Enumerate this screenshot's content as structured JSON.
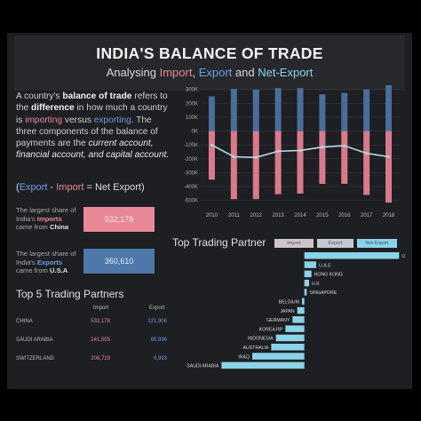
{
  "header": {
    "title": "INDIA'S BALANCE OF TRADE",
    "subtitle_prefix": "Analysing",
    "subtitle_import": "Import",
    "subtitle_sep1": ",",
    "subtitle_export": "Export",
    "subtitle_and": "and",
    "subtitle_net": "Net-Export"
  },
  "intro": {
    "p1": "A country's ",
    "p2": "balance of trade",
    "p3": " refers to the ",
    "p4": "difference",
    "p5": " in how much a country is ",
    "p6": "importing",
    "p7": " versus ",
    "p8": "exporting",
    "p9": ". The three components of the balance of payments are the ",
    "p10": "current account, financial account, and capital account."
  },
  "formula": {
    "open": "(",
    "export": "Export",
    "minus": " - ",
    "import": "Import",
    "rest": " = Net Export)"
  },
  "import_share": {
    "l1": "The largest share of",
    "l2a": "India's ",
    "l2b": "Imports",
    "l3a": "came from ",
    "l3b": "China",
    "value": "532,178",
    "color": "#e88795"
  },
  "export_share": {
    "l1": "The largest share of",
    "l2a": "India's ",
    "l2b": "Exports",
    "l3a": "came from ",
    "l3b": "U.S.A",
    "value": "360,610",
    "color": "#4e78a8"
  },
  "top5": {
    "title": "Top 5 Trading Partners",
    "col_import": "Import",
    "col_export": "Export",
    "rows": [
      {
        "country": "CHINA",
        "import": "532,178",
        "export": "121,906"
      },
      {
        "country": "SAUDI ARABIA",
        "import": "241,555",
        "export": "65,996"
      },
      {
        "country": "SWITZERLAND",
        "import": "206,729",
        "export": "9,993"
      }
    ]
  },
  "partners": {
    "title": "Top Trading Partner",
    "buttons": [
      "Import",
      "Export",
      "Net-Export"
    ],
    "button_colors": [
      "#d0c4cc",
      "#c3c8d2",
      "#8bd3e8"
    ]
  },
  "colors": {
    "import": "#d97a8a",
    "export": "#4a6d99",
    "net": "#b7dce4",
    "bar_partner": "#8bd3e8"
  },
  "chart_data": [
    {
      "type": "bar",
      "categories": [
        "2010",
        "2011",
        "2012",
        "2013",
        "2014",
        "2015",
        "2016",
        "2017",
        "2018"
      ],
      "series": [
        {
          "name": "Export",
          "values": [
            250000,
            305000,
            300000,
            310000,
            310000,
            265000,
            275000,
            300000,
            330000
          ]
        },
        {
          "name": "Import",
          "values": [
            -350000,
            -490000,
            -490000,
            -455000,
            -450000,
            -380000,
            -380000,
            -460000,
            -515000
          ]
        },
        {
          "name": "Net-Export",
          "values": [
            -100000,
            -185000,
            -190000,
            -145000,
            -140000,
            -115000,
            -105000,
            -160000,
            -185000
          ]
        }
      ],
      "yticks": [
        "300K",
        "200K",
        "100K",
        "0K",
        "-100K",
        "-200K",
        "-300K",
        "-400K",
        "-500K"
      ],
      "ylim": [
        -540000,
        330000
      ],
      "grid": true
    },
    {
      "type": "bar",
      "orientation": "horizontal",
      "title": "Top Trading Partner",
      "categories": [
        "U.S.A",
        "U.A.E",
        "HONG KONG",
        "U.K",
        "SINGAPORE",
        "BELGIUM",
        "JAPAN",
        "GERMANY",
        "KOREA RP",
        "INDONESIA",
        "AUSTRALIA",
        "IRAQ",
        "SAUDI ARABIA"
      ],
      "values": [
        200000,
        25000,
        15000,
        10000,
        5000,
        -5000,
        -15000,
        -25000,
        -40000,
        -60000,
        -70000,
        -110000,
        -175000
      ],
      "xlim": [
        -185000,
        205000
      ]
    }
  ]
}
